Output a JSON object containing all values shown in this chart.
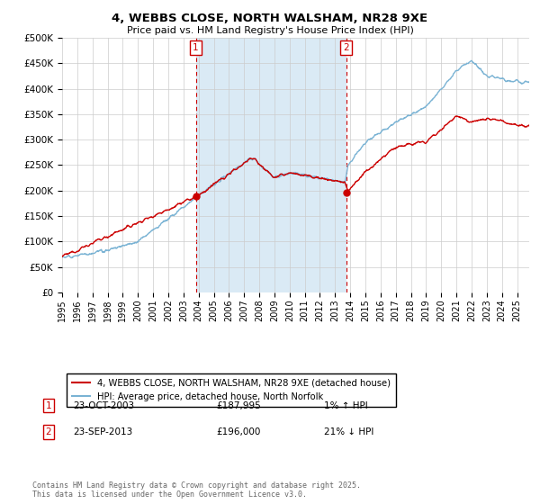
{
  "title_line1": "4, WEBBS CLOSE, NORTH WALSHAM, NR28 9XE",
  "title_line2": "Price paid vs. HM Land Registry's House Price Index (HPI)",
  "ylim": [
    0,
    500000
  ],
  "yticks": [
    0,
    50000,
    100000,
    150000,
    200000,
    250000,
    300000,
    350000,
    400000,
    450000,
    500000
  ],
  "hpi_color": "#7ab3d4",
  "price_color": "#cc0000",
  "shade_color": "#daeaf5",
  "grid_color": "#cccccc",
  "background_color": "#ffffff",
  "legend_label_price": "4, WEBBS CLOSE, NORTH WALSHAM, NR28 9XE (detached house)",
  "legend_label_hpi": "HPI: Average price, detached house, North Norfolk",
  "annotation1_date": "23-OCT-2003",
  "annotation1_price": "£187,995",
  "annotation1_hpi": "1% ↑ HPI",
  "annotation2_date": "23-SEP-2013",
  "annotation2_price": "£196,000",
  "annotation2_hpi": "21% ↓ HPI",
  "footnote": "Contains HM Land Registry data © Crown copyright and database right 2025.\nThis data is licensed under the Open Government Licence v3.0.",
  "sale1_x": 2003.82,
  "sale1_y": 187995,
  "sale2_x": 2013.73,
  "sale2_y": 196000,
  "xlim_start": 1995.0,
  "xlim_end": 2025.8
}
